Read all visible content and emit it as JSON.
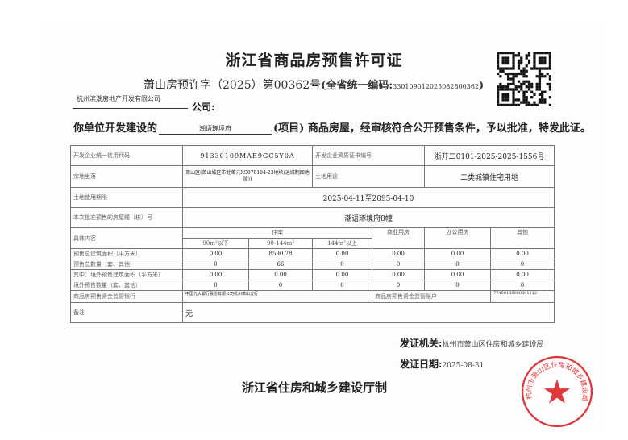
{
  "title": "浙江省商品房预售许可证",
  "permit_no": "萧山房预许字（2025）第00362号",
  "unified_code_label": "(全省统一编码:",
  "unified_code": "330109012025082800362",
  "unified_code_close": ")",
  "company_name": "杭州滨潮房地产开发有限公司",
  "company_suffix": "公司:",
  "sentence_prefix": "你单位开发建设的",
  "project_name": "潮语琢境府",
  "sentence_suffix": "(项目) 商品房屋，经审核符合公开预售条件，予以批准，特发此证。",
  "table": {
    "credit_code_label": "开发企业统一信用代码",
    "credit_code": "91330109MAE9GC5Y0A",
    "qualification_label": "开发企业资质证书编号",
    "qualification": "浙开二0101-2025-2025-1556号",
    "location_label": "宗地坐落",
    "location": "萧山区(萧山城区市北单元XS070104-23地块(运城制图地址))",
    "land_use_label": "土地用途",
    "land_use": "二类城镇住宅用地",
    "land_term_label": "土地使用期限",
    "land_term": "2025-04-11至2095-04-10",
    "building_label": "本次批准预售的房屋幢（栋）号",
    "building": "潮语琢境府8幢",
    "content_label": "具体内容",
    "headers": [
      "住宅",
      "商业用房",
      "办公用房",
      "其他"
    ],
    "sub_headers": [
      "90m²以下",
      "90-144m²",
      "144m²以上"
    ],
    "rows": [
      {
        "label": "预售总建筑面积（平方米）",
        "values": [
          "0.00",
          "8590.78",
          "0.00",
          "0.00",
          "0.00",
          "0.00"
        ]
      },
      {
        "label": "预售总数量（套、其他）",
        "values": [
          "0",
          "66",
          "0",
          "0",
          "0",
          "0"
        ]
      },
      {
        "label": "其中：境外预售建筑面积（平方米）",
        "values": [
          "0.00",
          "0.00",
          "0.00",
          "0.00",
          "0.00",
          "0.00"
        ]
      },
      {
        "label": "境外预售数量（套、其他）",
        "values": [
          "0",
          "0",
          "0",
          "0",
          "0",
          "0"
        ]
      }
    ],
    "bank_label": "商品房预售资金监管银行",
    "bank": "中国光大银行股份有限公司杭州萧山支行",
    "account_label": "商品房预售资金监管账户",
    "account": "77400188080391112",
    "remarks_label": "备注",
    "remarks": "无"
  },
  "issuer_label": "发证机关:",
  "issuer": "杭州市萧山区住房和城乡建设局",
  "date_label": "发证日期:",
  "date": "2025-08-31",
  "footer": "浙江省住房和城乡建设厅制",
  "seal_text": "杭州市萧山区住房和城乡建设局",
  "colors": {
    "seal": "#e0383a"
  }
}
